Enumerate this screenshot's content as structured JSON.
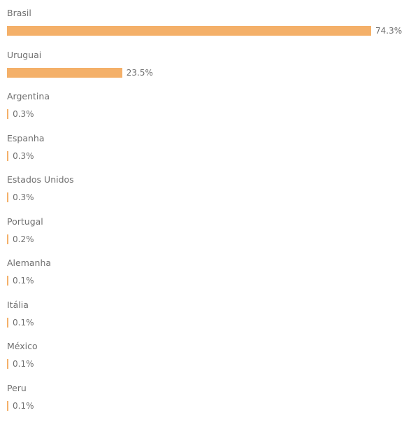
{
  "chart_data": {
    "type": "bar",
    "orientation": "horizontal",
    "categories": [
      "Brasil",
      "Uruguai",
      "Argentina",
      "Espanha",
      "Estados Unidos",
      "Portugal",
      "Alemanha",
      "Itália",
      "México",
      "Peru"
    ],
    "values": [
      74.3,
      23.5,
      0.3,
      0.3,
      0.3,
      0.2,
      0.1,
      0.1,
      0.1,
      0.1
    ],
    "value_labels": [
      "74.3%",
      "23.5%",
      "0.3%",
      "0.3%",
      "0.3%",
      "0.2%",
      "0.1%",
      "0.1%",
      "0.1%",
      "0.1%"
    ],
    "xlim": [
      0,
      74.3
    ],
    "bar_color": "#f4b069",
    "grid": false,
    "legend": "none"
  }
}
